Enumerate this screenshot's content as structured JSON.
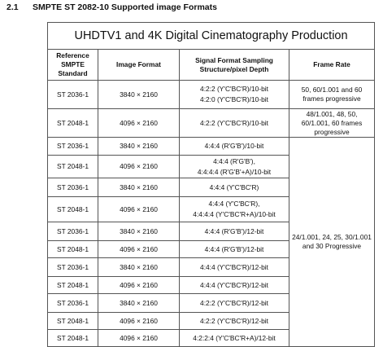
{
  "heading": {
    "number": "2.1",
    "title": "SMPTE ST 2082-10 Supported image Formats"
  },
  "table": {
    "title": "UHDTV1 and 4K Digital Cinematography Production",
    "headers": [
      "Reference SMPTE Standard",
      "Image Format",
      "Signal Format Sampling Structure/pixel Depth",
      "Frame Rate"
    ],
    "rows": [
      {
        "standard": "ST 2036-1",
        "format": "3840 × 2160",
        "signal": [
          "4:2:2 (Y'C'BC'R)/10-bit",
          "4:2:0 (Y'C'BC'R)/10-bit"
        ],
        "frame_rate": "50, 60/1.001 and 60 frames progressive"
      },
      {
        "standard": "ST 2048-1",
        "format": "4096 × 2160",
        "signal": [
          "4:2:2 (Y'C'BC'R)/10-bit"
        ],
        "frame_rate": "48/1.001, 48, 50, 60/1.001, 60 frames progressive"
      },
      {
        "standard": "ST 2036-1",
        "format": "3840 × 2160",
        "signal": [
          "4:4:4 (R'G'B')/10-bit"
        ],
        "frame_rate": "24/1.001, 24, 25, 30/1.001 and 30 Progressive"
      },
      {
        "standard": "ST 2048-1",
        "format": "4096 × 2160",
        "signal": [
          "4:4:4 (R'G'B'),",
          "4:4:4:4 (R'G'B'+A)/10-bit"
        ]
      },
      {
        "standard": "ST 2036-1",
        "format": "3840 × 2160",
        "signal": [
          "4:4:4 (Y'C'BC'R)"
        ]
      },
      {
        "standard": "ST 2048-1",
        "format": "4096 × 2160",
        "signal": [
          "4:4:4 (Y'C'BC'R),",
          "4:4:4:4 (Y'C'BC'R+A)/10-bit"
        ]
      },
      {
        "standard": "ST 2036-1",
        "format": "3840 × 2160",
        "signal": [
          "4:4:4 (R'G'B')/12-bit"
        ]
      },
      {
        "standard": "ST 2048-1",
        "format": "4096 × 2160",
        "signal": [
          "4:4:4 (R'G'B')/12-bit"
        ]
      },
      {
        "standard": "ST 2036-1",
        "format": "3840 × 2160",
        "signal": [
          "4:4:4 (Y'C'BC'R)/12-bit"
        ]
      },
      {
        "standard": "ST 2048-1",
        "format": "4096 × 2160",
        "signal": [
          "4:4:4 (Y'C'BC'R)/12-bit"
        ]
      },
      {
        "standard": "ST 2036-1",
        "format": "3840 × 2160",
        "signal": [
          "4:2:2 (Y'C'BC'R)/12-bit"
        ]
      },
      {
        "standard": "ST 2048-1",
        "format": "4096 × 2160",
        "signal": [
          "4:2:2 (Y'C'BC'R)/12-bit"
        ]
      },
      {
        "standard": "ST 2048-1",
        "format": "4096 × 2160",
        "signal": [
          "4:2:2:4 (Y'C'BC'R+A)/12-bit"
        ]
      }
    ]
  }
}
